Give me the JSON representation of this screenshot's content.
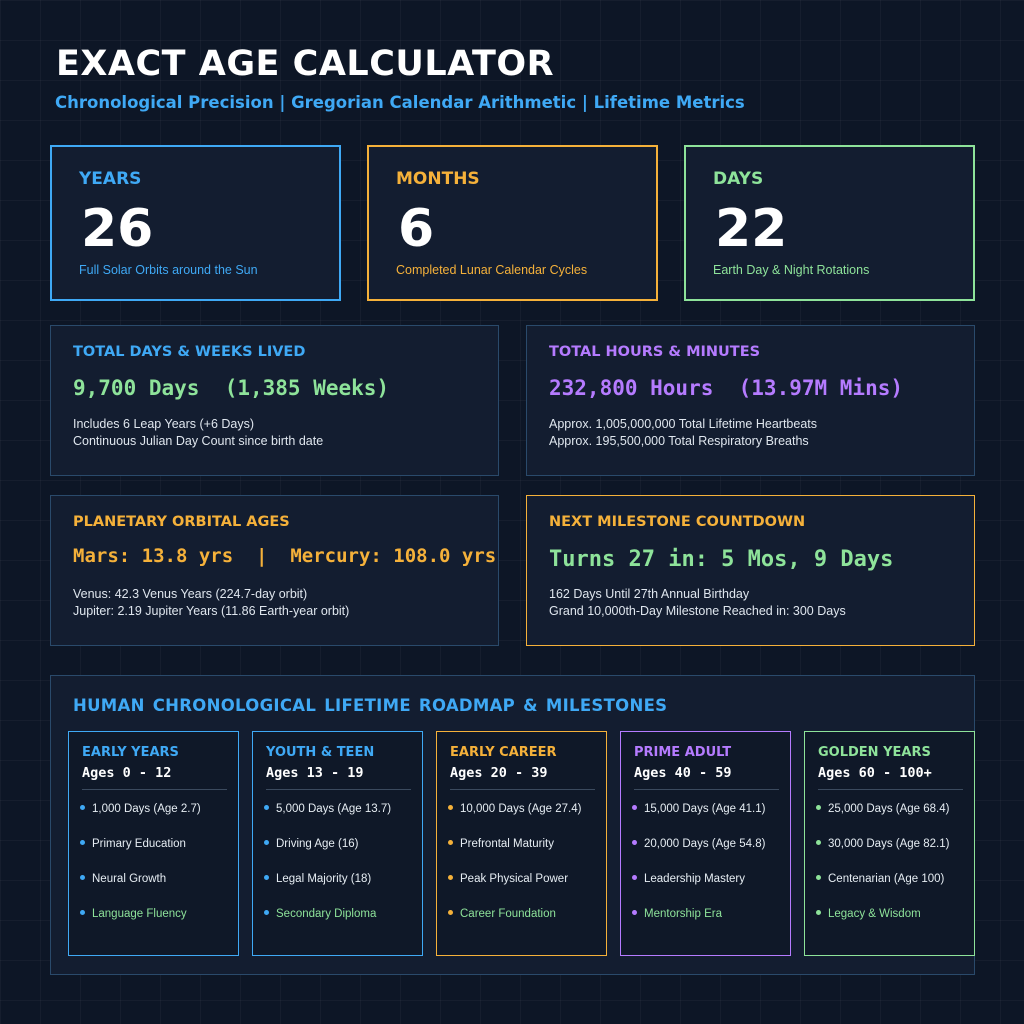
{
  "header": {
    "title": "EXACT AGE CALCULATOR",
    "subtitle": "Chronological Precision | Gregorian Calendar Arithmetic | Lifetime Metrics"
  },
  "colors": {
    "background": "#0d1626",
    "blue": "#3fa9f5",
    "orange": "#f5b13a",
    "green": "#8ee39a",
    "purple": "#b57bff"
  },
  "stats": {
    "years": {
      "label": "YEARS",
      "value": "26",
      "desc": "Full Solar Orbits around the Sun"
    },
    "months": {
      "label": "MONTHS",
      "value": "6",
      "desc": "Completed Lunar Calendar Cycles"
    },
    "days": {
      "label": "DAYS",
      "value": "22",
      "desc": "Earth Day & Night Rotations"
    }
  },
  "panels": {
    "total_days": {
      "title": "TOTAL DAYS & WEEKS LIVED",
      "big": "9,700 Days  (1,385 Weeks)",
      "line1": "Includes 6 Leap Years (+6 Days)",
      "line2": "Continuous Julian Day Count since birth date"
    },
    "total_hours": {
      "title": "TOTAL HOURS & MINUTES",
      "big": "232,800 Hours  (13.97M Mins)",
      "line1": "Approx. 1,005,000,000 Total Lifetime Heartbeats",
      "line2": "Approx. 195,500,000 Total Respiratory Breaths"
    },
    "planetary": {
      "title": "PLANETARY ORBITAL AGES",
      "big": "Mars: 13.8 yrs  |  Mercury: 108.0 yrs",
      "line1": "Venus: 42.3 Venus Years (224.7-day orbit)",
      "line2": "Jupiter: 2.19 Jupiter Years (11.86 Earth-year orbit)"
    },
    "milestone": {
      "title": "NEXT MILESTONE COUNTDOWN",
      "big": "Turns 27 in: 5 Mos, 9 Days",
      "line1": "162 Days Until 27th Annual Birthday",
      "line2": "Grand 10,000th-Day Milestone Reached in: 300 Days"
    }
  },
  "roadmap": {
    "title": "HUMAN CHRONOLOGICAL LIFETIME ROADMAP & MILESTONES",
    "stages": [
      {
        "name": "EARLY YEARS",
        "range": "Ages 0 - 12",
        "items": [
          "1,000 Days (Age 2.7)",
          "Primary Education",
          "Neural Growth",
          "Language Fluency"
        ]
      },
      {
        "name": "YOUTH & TEEN",
        "range": "Ages 13 - 19",
        "items": [
          "5,000 Days (Age 13.7)",
          "Driving Age (16)",
          "Legal Majority (18)",
          "Secondary Diploma"
        ]
      },
      {
        "name": "EARLY CAREER",
        "range": "Ages 20 - 39",
        "items": [
          "10,000 Days (Age 27.4)",
          "Prefrontal Maturity",
          "Peak Physical Power",
          "Career Foundation"
        ]
      },
      {
        "name": "PRIME ADULT",
        "range": "Ages 40 - 59",
        "items": [
          "15,000 Days (Age 41.1)",
          "20,000 Days (Age 54.8)",
          "Leadership Mastery",
          "Mentorship Era"
        ]
      },
      {
        "name": "GOLDEN YEARS",
        "range": "Ages 60 - 100+",
        "items": [
          "25,000 Days (Age 68.4)",
          "30,000 Days (Age 82.1)",
          "Centenarian (Age 100)",
          "Legacy & Wisdom"
        ]
      }
    ]
  }
}
